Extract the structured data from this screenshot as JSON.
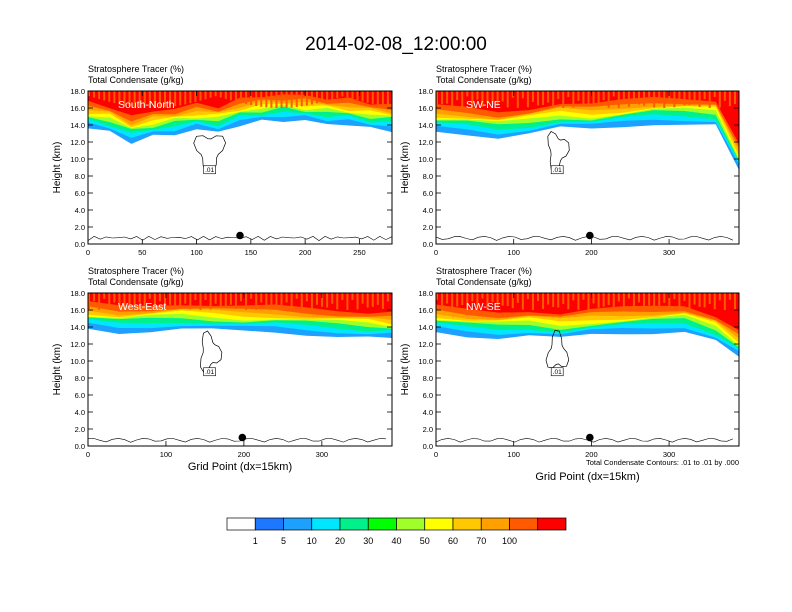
{
  "title": "2014-02-08_12:00:00",
  "footnote": "Total Condensate Contours: .01 to .01 by .000",
  "colorbar": {
    "labels": [
      "1",
      "5",
      "10",
      "20",
      "30",
      "40",
      "50",
      "60",
      "70",
      "100"
    ],
    "colors": [
      "#ffffff",
      "#1e78ff",
      "#1ea0ff",
      "#00e6ff",
      "#00f08c",
      "#00ff00",
      "#a0ff28",
      "#ffff00",
      "#ffc800",
      "#ffa000",
      "#ff5a00",
      "#ff0000"
    ]
  },
  "chart_data": [
    {
      "type": "heatmap",
      "title_lines": [
        "Stratosphere Tracer   (%)",
        "Total Condensate   (g/kg)"
      ],
      "label": "South-North",
      "ylabel": "Height (km)",
      "xlabel": "",
      "xlim": [
        0,
        280
      ],
      "ylim": [
        0,
        18
      ],
      "xticks": [
        0,
        50,
        100,
        150,
        200,
        250
      ],
      "yticks": [
        "0.0",
        "2.0",
        "4.0",
        "6.0",
        "8.0",
        "10.0",
        "12.0",
        "14.0",
        "16.0",
        "18.0"
      ],
      "contour_label": ".01",
      "tropopause_km": [
        [
          0,
          15.2
        ],
        [
          20,
          14.8
        ],
        [
          40,
          13.6
        ],
        [
          60,
          14.2
        ],
        [
          80,
          14.6
        ],
        [
          100,
          15.0
        ],
        [
          120,
          14.8
        ],
        [
          140,
          15.6
        ],
        [
          160,
          16.0
        ],
        [
          180,
          16.2
        ],
        [
          200,
          16.0
        ],
        [
          220,
          15.8
        ],
        [
          240,
          15.6
        ],
        [
          260,
          15.2
        ],
        [
          280,
          15.0
        ]
      ],
      "marker": {
        "x": 140,
        "y": 1.0
      }
    },
    {
      "type": "heatmap",
      "title_lines": [
        "Stratosphere Tracer   (%)",
        "Total Condensate   (g/kg)"
      ],
      "label": "SW-NE",
      "ylabel": "Height (km)",
      "xlabel": "",
      "xlim": [
        0,
        390
      ],
      "ylim": [
        0,
        18
      ],
      "xticks": [
        0,
        100,
        200,
        300
      ],
      "yticks": [
        "0.0",
        "2.0",
        "4.0",
        "6.0",
        "8.0",
        "10.0",
        "12.0",
        "14.0",
        "16.0",
        "18.0"
      ],
      "contour_label": ".01",
      "tropopause_km": [
        [
          0,
          14.8
        ],
        [
          40,
          14.6
        ],
        [
          80,
          14.2
        ],
        [
          120,
          14.6
        ],
        [
          160,
          15.2
        ],
        [
          200,
          15.0
        ],
        [
          240,
          15.4
        ],
        [
          280,
          15.8
        ],
        [
          320,
          15.8
        ],
        [
          360,
          15.6
        ],
        [
          390,
          10.2
        ]
      ],
      "marker": {
        "x": 198,
        "y": 1.0
      }
    },
    {
      "type": "heatmap",
      "title_lines": [
        "Stratosphere Tracer   (%)",
        "Total Condensate   (g/kg)"
      ],
      "label": "West-East",
      "ylabel": "Height (km)",
      "xlabel": "Grid Point (dx=15km)",
      "xlim": [
        0,
        390
      ],
      "ylim": [
        0,
        18
      ],
      "xticks": [
        0,
        100,
        200,
        300
      ],
      "yticks": [
        "0.0",
        "2.0",
        "4.0",
        "6.0",
        "8.0",
        "10.0",
        "12.0",
        "14.0",
        "16.0",
        "18.0"
      ],
      "contour_label": ".01",
      "tropopause_km": [
        [
          0,
          15.4
        ],
        [
          40,
          15.0
        ],
        [
          80,
          15.2
        ],
        [
          120,
          15.4
        ],
        [
          160,
          15.2
        ],
        [
          200,
          15.0
        ],
        [
          240,
          15.0
        ],
        [
          280,
          14.8
        ],
        [
          320,
          14.6
        ],
        [
          360,
          14.4
        ],
        [
          390,
          14.2
        ]
      ],
      "marker": {
        "x": 198,
        "y": 1.0
      }
    },
    {
      "type": "heatmap",
      "title_lines": [
        "Stratosphere Tracer   (%)",
        "Total Condensate   (g/kg)"
      ],
      "label": "NW-SE",
      "ylabel": "Height (km)",
      "xlabel": "Grid Point (dx=15km)",
      "xlim": [
        0,
        390
      ],
      "ylim": [
        0,
        18
      ],
      "xticks": [
        0,
        100,
        200,
        300
      ],
      "yticks": [
        "0.0",
        "2.0",
        "4.0",
        "6.0",
        "8.0",
        "10.0",
        "12.0",
        "14.0",
        "16.0",
        "18.0"
      ],
      "contour_label": ".01",
      "tropopause_km": [
        [
          0,
          15.0
        ],
        [
          40,
          14.6
        ],
        [
          80,
          14.4
        ],
        [
          120,
          14.6
        ],
        [
          160,
          14.2
        ],
        [
          200,
          14.6
        ],
        [
          240,
          14.8
        ],
        [
          280,
          15.0
        ],
        [
          320,
          15.2
        ],
        [
          360,
          14.0
        ],
        [
          390,
          12.0
        ]
      ],
      "marker": {
        "x": 198,
        "y": 1.0
      }
    }
  ]
}
